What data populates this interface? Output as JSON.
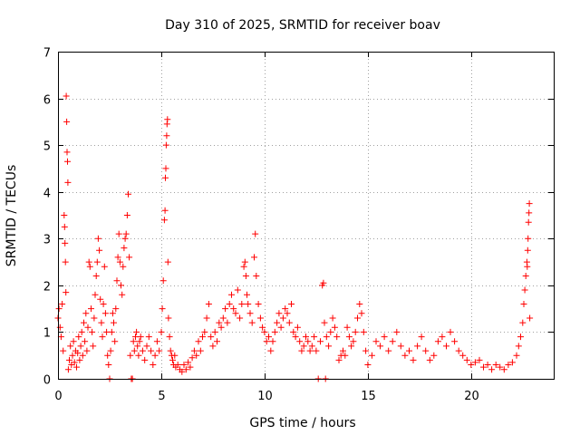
{
  "chart_data": {
    "type": "scatter",
    "title": "Day 310 of 2025, SRMTID for receiver boav",
    "xlabel": "GPS time / hours",
    "ylabel": "SRMTID / TECUs",
    "xlim": [
      0,
      24
    ],
    "ylim": [
      0,
      7
    ],
    "xticks": [
      0,
      5,
      10,
      15,
      20
    ],
    "yticks": [
      0,
      1,
      2,
      3,
      4,
      5,
      6,
      7
    ],
    "xtick_labels": [
      "0",
      "5",
      "10",
      "15",
      "20"
    ],
    "ytick_labels": [
      "0",
      "1",
      "2",
      "3",
      "4",
      "5",
      "6",
      "7"
    ],
    "grid": true,
    "marker": "+",
    "color": "#ff0000",
    "series": [
      {
        "name": "SRMTID",
        "points": [
          [
            0.0,
            1.3
          ],
          [
            0.05,
            1.5
          ],
          [
            0.1,
            1.1
          ],
          [
            0.15,
            0.9
          ],
          [
            0.2,
            1.6
          ],
          [
            0.25,
            0.6
          ],
          [
            0.3,
            3.5
          ],
          [
            0.32,
            3.25
          ],
          [
            0.34,
            2.9
          ],
          [
            0.36,
            2.5
          ],
          [
            0.38,
            1.85
          ],
          [
            0.4,
            6.05
          ],
          [
            0.42,
            5.5
          ],
          [
            0.44,
            4.85
          ],
          [
            0.46,
            4.65
          ],
          [
            0.48,
            4.2
          ],
          [
            0.5,
            0.2
          ],
          [
            0.55,
            0.4
          ],
          [
            0.6,
            0.7
          ],
          [
            0.65,
            0.3
          ],
          [
            0.7,
            0.5
          ],
          [
            0.75,
            0.8
          ],
          [
            0.8,
            0.35
          ],
          [
            0.85,
            0.6
          ],
          [
            0.9,
            0.25
          ],
          [
            0.95,
            0.55
          ],
          [
            1.0,
            0.9
          ],
          [
            1.05,
            0.4
          ],
          [
            1.1,
            0.7
          ],
          [
            1.15,
            1.0
          ],
          [
            1.2,
            0.5
          ],
          [
            1.25,
            1.2
          ],
          [
            1.3,
            0.8
          ],
          [
            1.35,
            1.4
          ],
          [
            1.4,
            0.6
          ],
          [
            1.45,
            1.1
          ],
          [
            1.5,
            2.5
          ],
          [
            1.55,
            2.4
          ],
          [
            1.6,
            1.5
          ],
          [
            1.65,
            1.0
          ],
          [
            1.7,
            0.7
          ],
          [
            1.75,
            1.3
          ],
          [
            1.8,
            1.8
          ],
          [
            1.85,
            2.2
          ],
          [
            1.9,
            2.5
          ],
          [
            1.95,
            3.0
          ],
          [
            2.0,
            2.75
          ],
          [
            2.05,
            1.7
          ],
          [
            2.1,
            1.2
          ],
          [
            2.15,
            0.9
          ],
          [
            2.2,
            1.6
          ],
          [
            2.25,
            2.4
          ],
          [
            2.3,
            1.4
          ],
          [
            2.35,
            1.0
          ],
          [
            2.4,
            0.5
          ],
          [
            2.45,
            0.3
          ],
          [
            2.5,
            0.0
          ],
          [
            2.55,
            0.6
          ],
          [
            2.6,
            1.0
          ],
          [
            2.65,
            1.4
          ],
          [
            2.7,
            1.2
          ],
          [
            2.75,
            0.8
          ],
          [
            2.8,
            1.5
          ],
          [
            2.85,
            2.1
          ],
          [
            2.9,
            2.6
          ],
          [
            2.95,
            3.1
          ],
          [
            3.0,
            2.5
          ],
          [
            3.05,
            2.0
          ],
          [
            3.1,
            1.8
          ],
          [
            3.15,
            2.4
          ],
          [
            3.2,
            2.8
          ],
          [
            3.25,
            3.0
          ],
          [
            3.3,
            3.1
          ],
          [
            3.35,
            3.5
          ],
          [
            3.4,
            3.95
          ],
          [
            3.45,
            2.6
          ],
          [
            3.5,
            0.5
          ],
          [
            3.55,
            0.0
          ],
          [
            3.6,
            0.0
          ],
          [
            3.65,
            0.8
          ],
          [
            3.7,
            0.6
          ],
          [
            3.75,
            0.9
          ],
          [
            3.8,
            1.0
          ],
          [
            3.85,
            0.7
          ],
          [
            3.9,
            0.5
          ],
          [
            3.95,
            0.8
          ],
          [
            4.0,
            0.9
          ],
          [
            4.1,
            0.6
          ],
          [
            4.2,
            0.4
          ],
          [
            4.3,
            0.7
          ],
          [
            4.4,
            0.9
          ],
          [
            4.5,
            0.6
          ],
          [
            4.6,
            0.3
          ],
          [
            4.7,
            0.5
          ],
          [
            4.8,
            0.8
          ],
          [
            4.9,
            0.6
          ],
          [
            5.0,
            1.0
          ],
          [
            5.05,
            1.5
          ],
          [
            5.1,
            2.1
          ],
          [
            5.15,
            3.4
          ],
          [
            5.18,
            3.6
          ],
          [
            5.2,
            4.3
          ],
          [
            5.22,
            4.5
          ],
          [
            5.24,
            5.0
          ],
          [
            5.26,
            5.2
          ],
          [
            5.28,
            5.45
          ],
          [
            5.3,
            5.55
          ],
          [
            5.32,
            2.5
          ],
          [
            5.35,
            1.3
          ],
          [
            5.4,
            0.9
          ],
          [
            5.45,
            0.6
          ],
          [
            5.5,
            0.5
          ],
          [
            5.55,
            0.4
          ],
          [
            5.6,
            0.3
          ],
          [
            5.65,
            0.5
          ],
          [
            5.7,
            0.25
          ],
          [
            5.8,
            0.3
          ],
          [
            5.9,
            0.2
          ],
          [
            6.0,
            0.15
          ],
          [
            6.1,
            0.3
          ],
          [
            6.2,
            0.2
          ],
          [
            6.3,
            0.35
          ],
          [
            6.4,
            0.25
          ],
          [
            6.5,
            0.45
          ],
          [
            6.6,
            0.6
          ],
          [
            6.7,
            0.5
          ],
          [
            6.8,
            0.8
          ],
          [
            6.9,
            0.6
          ],
          [
            7.0,
            0.9
          ],
          [
            7.1,
            1.0
          ],
          [
            7.2,
            1.3
          ],
          [
            7.3,
            1.6
          ],
          [
            7.4,
            0.9
          ],
          [
            7.5,
            0.7
          ],
          [
            7.6,
            1.0
          ],
          [
            7.7,
            0.8
          ],
          [
            7.8,
            1.2
          ],
          [
            7.9,
            1.1
          ],
          [
            8.0,
            1.3
          ],
          [
            8.1,
            1.5
          ],
          [
            8.2,
            1.2
          ],
          [
            8.3,
            1.6
          ],
          [
            8.4,
            1.8
          ],
          [
            8.5,
            1.5
          ],
          [
            8.6,
            1.4
          ],
          [
            8.7,
            1.9
          ],
          [
            8.8,
            1.3
          ],
          [
            8.9,
            1.6
          ],
          [
            9.0,
            2.4
          ],
          [
            9.05,
            2.5
          ],
          [
            9.1,
            2.2
          ],
          [
            9.15,
            1.8
          ],
          [
            9.2,
            1.6
          ],
          [
            9.3,
            1.4
          ],
          [
            9.4,
            1.2
          ],
          [
            9.5,
            2.6
          ],
          [
            9.55,
            3.1
          ],
          [
            9.6,
            2.2
          ],
          [
            9.7,
            1.6
          ],
          [
            9.8,
            1.3
          ],
          [
            9.9,
            1.1
          ],
          [
            10.0,
            1.0
          ],
          [
            10.1,
            0.8
          ],
          [
            10.2,
            0.9
          ],
          [
            10.3,
            0.6
          ],
          [
            10.4,
            0.8
          ],
          [
            10.5,
            1.0
          ],
          [
            10.6,
            1.2
          ],
          [
            10.7,
            1.4
          ],
          [
            10.8,
            1.1
          ],
          [
            10.9,
            1.3
          ],
          [
            11.0,
            1.5
          ],
          [
            11.1,
            1.4
          ],
          [
            11.2,
            1.2
          ],
          [
            11.3,
            1.6
          ],
          [
            11.4,
            1.0
          ],
          [
            11.5,
            0.9
          ],
          [
            11.6,
            1.1
          ],
          [
            11.7,
            0.8
          ],
          [
            11.8,
            0.6
          ],
          [
            11.9,
            0.7
          ],
          [
            12.0,
            0.9
          ],
          [
            12.1,
            0.8
          ],
          [
            12.2,
            0.6
          ],
          [
            12.3,
            0.7
          ],
          [
            12.4,
            0.9
          ],
          [
            12.5,
            0.6
          ],
          [
            12.6,
            0.0
          ],
          [
            12.7,
            0.8
          ],
          [
            12.8,
            2.0
          ],
          [
            12.85,
            2.05
          ],
          [
            12.9,
            1.2
          ],
          [
            12.95,
            0.0
          ],
          [
            13.0,
            0.9
          ],
          [
            13.1,
            0.7
          ],
          [
            13.2,
            1.0
          ],
          [
            13.3,
            1.3
          ],
          [
            13.4,
            1.1
          ],
          [
            13.5,
            0.9
          ],
          [
            13.6,
            0.4
          ],
          [
            13.7,
            0.5
          ],
          [
            13.8,
            0.6
          ],
          [
            13.9,
            0.5
          ],
          [
            14.0,
            1.1
          ],
          [
            14.1,
            0.9
          ],
          [
            14.2,
            0.7
          ],
          [
            14.3,
            0.8
          ],
          [
            14.4,
            1.0
          ],
          [
            14.5,
            1.3
          ],
          [
            14.6,
            1.6
          ],
          [
            14.7,
            1.4
          ],
          [
            14.8,
            1.0
          ],
          [
            14.9,
            0.6
          ],
          [
            15.0,
            0.3
          ],
          [
            15.2,
            0.5
          ],
          [
            15.4,
            0.8
          ],
          [
            15.6,
            0.7
          ],
          [
            15.8,
            0.9
          ],
          [
            16.0,
            0.6
          ],
          [
            16.2,
            0.8
          ],
          [
            16.4,
            1.0
          ],
          [
            16.6,
            0.7
          ],
          [
            16.8,
            0.5
          ],
          [
            17.0,
            0.6
          ],
          [
            17.2,
            0.4
          ],
          [
            17.4,
            0.7
          ],
          [
            17.6,
            0.9
          ],
          [
            17.8,
            0.6
          ],
          [
            18.0,
            0.4
          ],
          [
            18.2,
            0.5
          ],
          [
            18.4,
            0.8
          ],
          [
            18.6,
            0.9
          ],
          [
            18.8,
            0.7
          ],
          [
            19.0,
            1.0
          ],
          [
            19.2,
            0.8
          ],
          [
            19.4,
            0.6
          ],
          [
            19.6,
            0.5
          ],
          [
            19.8,
            0.4
          ],
          [
            20.0,
            0.3
          ],
          [
            20.2,
            0.35
          ],
          [
            20.4,
            0.4
          ],
          [
            20.6,
            0.25
          ],
          [
            20.8,
            0.3
          ],
          [
            21.0,
            0.2
          ],
          [
            21.2,
            0.3
          ],
          [
            21.4,
            0.25
          ],
          [
            21.6,
            0.2
          ],
          [
            21.8,
            0.3
          ],
          [
            22.0,
            0.35
          ],
          [
            22.2,
            0.5
          ],
          [
            22.3,
            0.7
          ],
          [
            22.4,
            0.9
          ],
          [
            22.5,
            1.2
          ],
          [
            22.55,
            1.6
          ],
          [
            22.6,
            1.9
          ],
          [
            22.65,
            2.2
          ],
          [
            22.7,
            2.5
          ],
          [
            22.72,
            2.4
          ],
          [
            22.74,
            2.75
          ],
          [
            22.76,
            3.0
          ],
          [
            22.78,
            3.35
          ],
          [
            22.8,
            3.55
          ],
          [
            22.82,
            3.75
          ],
          [
            22.84,
            1.3
          ]
        ]
      }
    ]
  }
}
